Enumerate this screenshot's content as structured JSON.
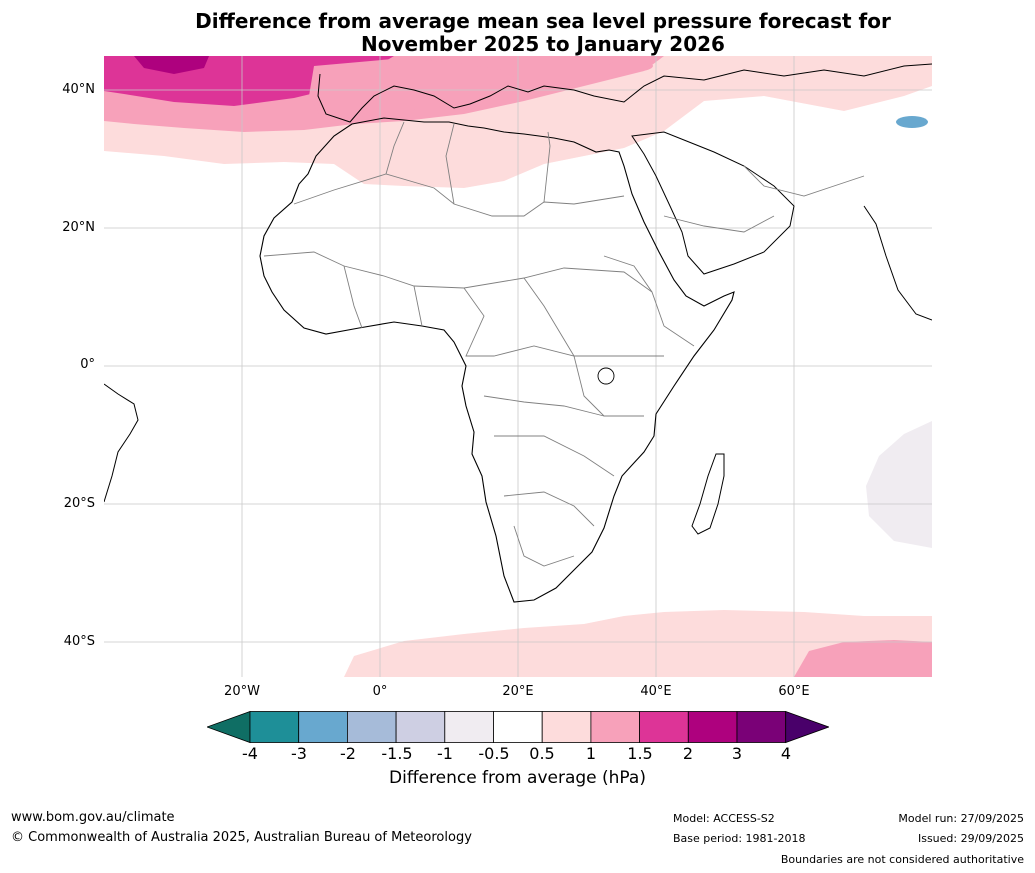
{
  "title_line1": "Difference from average mean sea level pressure forecast for",
  "title_line2": "November 2025 to January 2026",
  "map": {
    "lat_labels": [
      "40°N",
      "20°N",
      "0°",
      "20°S",
      "40°S"
    ],
    "lon_labels": [
      "20°W",
      "0°",
      "20°E",
      "40°E",
      "60°E"
    ],
    "colors": {
      "ocean": "#ffffff",
      "land_outline": "#000000",
      "border": "#808080",
      "grid": "#c8c8c8"
    }
  },
  "colorbar": {
    "ticks": [
      "-4",
      "-3",
      "-2",
      "-1.5",
      "-1",
      "-0.5",
      "0.5",
      "1",
      "1.5",
      "2",
      "3",
      "4"
    ],
    "colors": [
      "#0f6e64",
      "#1e8f98",
      "#68a8cf",
      "#a6bbd9",
      "#cecfe3",
      "#f0ecf1",
      "#ffffff",
      "#fddcdc",
      "#f7a1ba",
      "#dd3497",
      "#ae017e",
      "#7a0177",
      "#49006a"
    ],
    "label": "Difference from average (hPa)"
  },
  "footer": {
    "website": "www.bom.gov.au/climate",
    "copyright": "© Commonwealth of Australia 2025, Australian Bureau of Meteorology",
    "model": "Model: ACCESS-S2",
    "base_period": "Base period: 1981-2018",
    "model_run": "Model run: 27/09/2025",
    "issued": "Issued: 29/09/2025",
    "disclaimer": "Boundaries are not considered authoritative"
  }
}
